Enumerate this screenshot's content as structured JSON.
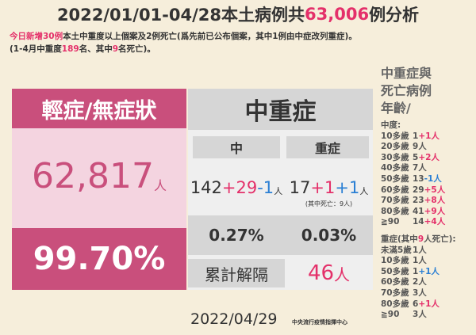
{
  "title": [
    {
      "text": "2022/01/01-04/28本土病例共"
    },
    {
      "text": "63,006",
      "color": "#e4306a"
    },
    {
      "text": " 例分析"
    }
  ],
  "notes": [
    [
      {
        "text": "今日新增30例",
        "color": "#e4306a"
      },
      {
        "text": "本土中重度以上個案及2例死亡(爲先前已公布個案，其中1例由中症改列重症)。"
      }
    ],
    [
      {
        "text": "(1-4月中重度"
      },
      {
        "text": "189",
        "color": "#e4306a"
      },
      {
        "text": "名、其中"
      },
      {
        "text": "9",
        "color": "#e4306a"
      },
      {
        "text": "名死亡)。"
      }
    ]
  ],
  "mild": {
    "header": "輕症/無症狀",
    "count": "62,817",
    "unit": "人",
    "percent": "99.70%"
  },
  "severe": {
    "header": "中重症",
    "moderate": {
      "label": "中",
      "count": [
        {
          "text": "142"
        },
        {
          "text": "+29",
          "color": "#e4306a"
        },
        {
          "text": "-1",
          "color": "#2a7fd4"
        }
      ],
      "unit": "人",
      "percent": "0.27%"
    },
    "critical": {
      "label": "重症",
      "count": [
        {
          "text": "17"
        },
        {
          "text": "+1",
          "color": "#e4306a"
        },
        {
          "text": "+1",
          "color": "#2a7fd4"
        }
      ],
      "unit": "人",
      "note": "(其中死亡：9人)",
      "percent": "0.03%"
    },
    "released_label": "累計解隔",
    "released": "46",
    "released_unit": "人"
  },
  "ages": {
    "heading": [
      "中重症與",
      "死亡病例",
      "年齡/"
    ],
    "moderate": {
      "label": [
        {
          "text": "中度:"
        }
      ],
      "rows": [
        {
          "age": "10多歲",
          "count": [
            {
              "text": "1"
            },
            {
              "text": "+1人",
              "color": "#e4306a"
            }
          ]
        },
        {
          "age": "20多歲",
          "count": [
            {
              "text": "9人"
            }
          ]
        },
        {
          "age": "30多歲",
          "count": [
            {
              "text": "5"
            },
            {
              "text": "+2人",
              "color": "#e4306a"
            }
          ]
        },
        {
          "age": "40多歲",
          "count": [
            {
              "text": "7人"
            }
          ]
        },
        {
          "age": "50多歲",
          "count": [
            {
              "text": "13"
            },
            {
              "text": "-1人",
              "color": "#2a7fd4"
            }
          ]
        },
        {
          "age": "60多歲",
          "count": [
            {
              "text": "29"
            },
            {
              "text": "+5人",
              "color": "#e4306a"
            }
          ]
        },
        {
          "age": "70多歲",
          "count": [
            {
              "text": "23"
            },
            {
              "text": "+8人",
              "color": "#e4306a"
            }
          ]
        },
        {
          "age": "80多歲",
          "count": [
            {
              "text": "41"
            },
            {
              "text": "+9人",
              "color": "#e4306a"
            }
          ]
        },
        {
          "age": "≧90",
          "count": [
            {
              "text": "14"
            },
            {
              "text": "+4人",
              "color": "#e4306a"
            }
          ]
        }
      ]
    },
    "critical": {
      "label": [
        {
          "text": "重症(其中"
        },
        {
          "text": "9",
          "color": "#e4306a"
        },
        {
          "text": "人死亡):"
        }
      ],
      "rows": [
        {
          "age": "未滿5歲",
          "count": [
            {
              "text": "1人"
            }
          ]
        },
        {
          "age": "10多歲",
          "count": [
            {
              "text": "1人"
            }
          ]
        },
        {
          "age": "50多歲",
          "count": [
            {
              "text": "1"
            },
            {
              "text": "+1人",
              "color": "#2a7fd4"
            }
          ]
        },
        {
          "age": "60多歲",
          "count": [
            {
              "text": "2人"
            }
          ]
        },
        {
          "age": "70多歲",
          "count": [
            {
              "text": "3人"
            }
          ]
        },
        {
          "age": "80多歲",
          "count": [
            {
              "text": "6"
            },
            {
              "text": "+1人",
              "color": "#e4306a"
            }
          ]
        },
        {
          "age": "≧90",
          "count": [
            {
              "text": "3人"
            }
          ]
        }
      ]
    }
  },
  "footer": {
    "date": "2022/04/29",
    "org": "中央流行疫情指揮中心"
  }
}
